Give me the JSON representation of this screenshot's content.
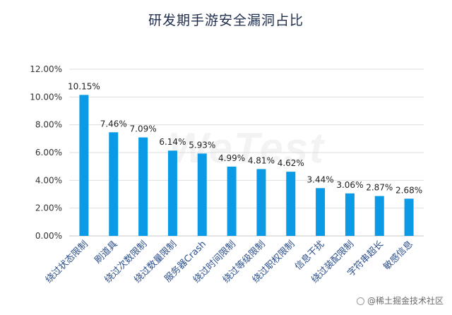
{
  "chart_data": {
    "type": "bar",
    "title": "研发期手游安全漏洞占比",
    "xlabel": "",
    "ylabel": "",
    "categories": [
      "绕过状态限制",
      "刷道具",
      "绕过次数限制",
      "绕过数量限制",
      "服务器Crash",
      "绕过时间限制",
      "绕过等级限制",
      "绕过职权限制",
      "信息干扰",
      "绕过装配限制",
      "字符串超长",
      "敏感信息"
    ],
    "values": [
      10.15,
      7.46,
      7.09,
      6.14,
      5.93,
      4.99,
      4.81,
      4.62,
      3.44,
      3.06,
      2.87,
      2.68
    ],
    "value_labels": [
      "10.15%",
      "7.46%",
      "7.09%",
      "6.14%",
      "5.93%",
      "4.99%",
      "4.81%",
      "4.62%",
      "3.44%",
      "3.06%",
      "2.87%",
      "2.68%"
    ],
    "y_ticks": [
      0,
      2,
      4,
      6,
      8,
      10,
      12
    ],
    "y_tick_labels": [
      "0.00%",
      "2.00%",
      "4.00%",
      "6.00%",
      "8.00%",
      "10.00%",
      "12.00%"
    ],
    "ylim": [
      0,
      12
    ],
    "grid": true,
    "legend": "none",
    "bar_color": "#0a9ae6"
  },
  "watermark": "WeTest",
  "credit": "@稀土掘金技术社区"
}
